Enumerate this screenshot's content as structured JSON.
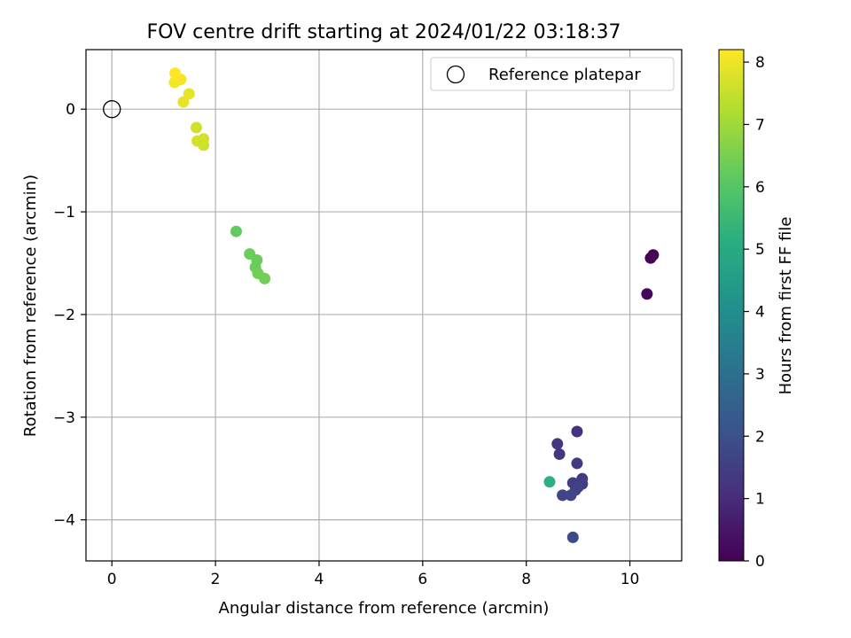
{
  "chart_data": {
    "type": "scatter",
    "title": "FOV centre drift starting at 2024/01/22 03:18:37",
    "xlabel": "Angular distance from reference (arcmin)",
    "ylabel": "Rotation from reference (arcmin)",
    "xlim": [
      -0.5,
      11.0
    ],
    "ylim": [
      -4.4,
      0.58
    ],
    "xticks": [
      0,
      2,
      4,
      6,
      8,
      10
    ],
    "yticks": [
      -4,
      -3,
      -2,
      -1,
      0
    ],
    "grid": true,
    "legend": {
      "position": "top-right",
      "label": "Reference platepar"
    },
    "reference_point": {
      "x": 0,
      "y": 0
    },
    "colorbar": {
      "label": "Hours from first FF file",
      "range": [
        0,
        8.2
      ],
      "ticks": [
        0,
        1,
        2,
        3,
        4,
        5,
        6,
        7,
        8
      ],
      "colormap": "viridis"
    },
    "points": [
      {
        "x": 10.45,
        "y": -1.42,
        "c": 0.05
      },
      {
        "x": 10.4,
        "y": -1.45,
        "c": 0.08
      },
      {
        "x": 10.33,
        "y": -1.8,
        "c": 0.15
      },
      {
        "x": 8.98,
        "y": -3.14,
        "c": 1.2
      },
      {
        "x": 8.6,
        "y": -3.26,
        "c": 1.3
      },
      {
        "x": 8.64,
        "y": -3.36,
        "c": 1.3
      },
      {
        "x": 8.98,
        "y": -3.45,
        "c": 1.4
      },
      {
        "x": 9.08,
        "y": -3.6,
        "c": 1.4
      },
      {
        "x": 8.9,
        "y": -3.64,
        "c": 1.5
      },
      {
        "x": 9.08,
        "y": -3.65,
        "c": 1.5
      },
      {
        "x": 9.0,
        "y": -3.68,
        "c": 1.6
      },
      {
        "x": 8.95,
        "y": -3.71,
        "c": 1.6
      },
      {
        "x": 8.7,
        "y": -3.76,
        "c": 1.7
      },
      {
        "x": 8.86,
        "y": -3.76,
        "c": 1.7
      },
      {
        "x": 8.9,
        "y": -4.17,
        "c": 1.8
      },
      {
        "x": 8.45,
        "y": -3.63,
        "c": 5.2
      },
      {
        "x": 2.4,
        "y": -1.19,
        "c": 6.2
      },
      {
        "x": 2.66,
        "y": -1.41,
        "c": 6.3
      },
      {
        "x": 2.8,
        "y": -1.47,
        "c": 6.3
      },
      {
        "x": 2.77,
        "y": -1.54,
        "c": 6.3
      },
      {
        "x": 2.82,
        "y": -1.6,
        "c": 6.4
      },
      {
        "x": 2.95,
        "y": -1.65,
        "c": 6.4
      },
      {
        "x": 1.63,
        "y": -0.18,
        "c": 7.6
      },
      {
        "x": 1.77,
        "y": -0.29,
        "c": 7.7
      },
      {
        "x": 1.65,
        "y": -0.31,
        "c": 7.7
      },
      {
        "x": 1.77,
        "y": -0.35,
        "c": 7.6
      },
      {
        "x": 1.38,
        "y": 0.07,
        "c": 7.9
      },
      {
        "x": 1.49,
        "y": 0.15,
        "c": 7.9
      },
      {
        "x": 1.21,
        "y": 0.26,
        "c": 8.1
      },
      {
        "x": 1.33,
        "y": 0.29,
        "c": 8.1
      },
      {
        "x": 1.22,
        "y": 0.35,
        "c": 8.2
      }
    ]
  }
}
